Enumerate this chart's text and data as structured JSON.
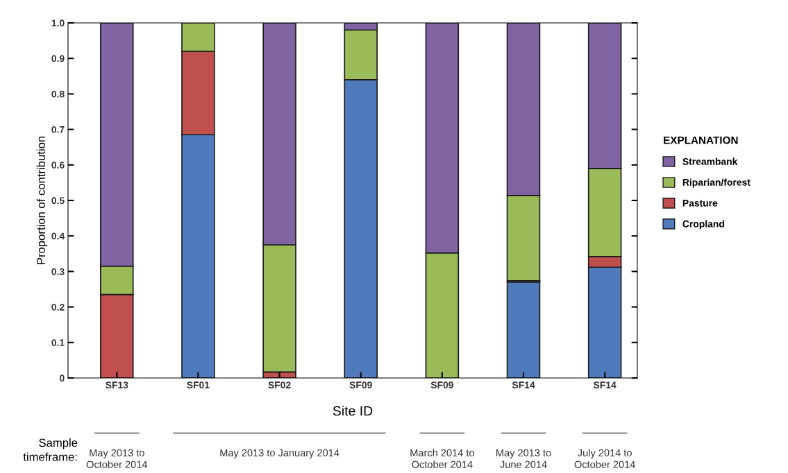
{
  "chart_data": {
    "type": "bar",
    "stacked": true,
    "xlabel": "Site ID",
    "ylabel": "Proportion of contribution",
    "legend_title": "EXPLANATION",
    "legend": "right",
    "categories": [
      "SF13",
      "SF01",
      "SF02",
      "SF09",
      "SF09",
      "SF14",
      "SF14"
    ],
    "series": [
      {
        "name": "Cropland",
        "color": "#4f7bbd",
        "values": [
          0,
          0.685,
          null,
          0.84,
          0,
          0.27,
          0.312
        ]
      },
      {
        "name": "Pasture",
        "color": "#c0504d",
        "values": [
          0.235,
          0.235,
          0.017,
          0,
          0,
          0.004,
          0.03
        ]
      },
      {
        "name": "Riparian/forest",
        "color": "#9bbb59",
        "values": [
          0.08,
          0.08,
          0.358,
          0.14,
          0.352,
          0.24,
          0.248
        ]
      },
      {
        "name": "Streambank",
        "color": "#8064a2",
        "values": [
          0.685,
          0,
          0.625,
          0.02,
          0.648,
          0.486,
          0.41
        ]
      }
    ],
    "ylim": [
      0,
      1.0
    ],
    "yticks": [
      {
        "value": 0,
        "label": "0"
      },
      0.1,
      0.2,
      0.3,
      0.4,
      0.5,
      0.6,
      0.7,
      0.8,
      0.9,
      {
        "value": 1.0,
        "label": "1.0"
      }
    ],
    "grid": false,
    "annotations": [
      "Sample\ntimeframe:",
      "May 2013 to\nOctober 2014",
      "May 2013 to January 2014",
      "March 2014 to\nOctober 2014",
      "May 2013 to\nJune 2014",
      "July 2014 to\nOctober 2014"
    ]
  }
}
